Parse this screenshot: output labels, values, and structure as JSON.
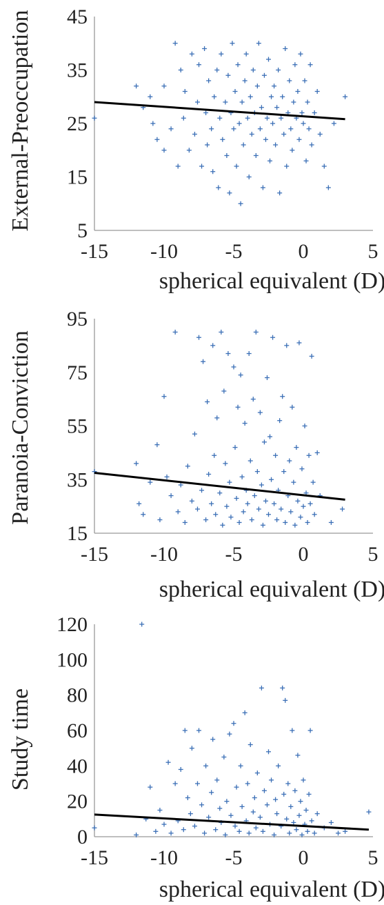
{
  "chart_data": [
    {
      "type": "scatter",
      "xlabel": "spherical equivalent (D)",
      "ylabel": "External-Preoccupation",
      "xlim": [
        -15,
        5
      ],
      "ylim": [
        5,
        45
      ],
      "xticks": [
        -15,
        -10,
        -5,
        0,
        5
      ],
      "yticks": [
        5,
        15,
        25,
        35,
        45
      ],
      "trendline": {
        "x": [
          -15,
          3
        ],
        "y": [
          29.0,
          25.8
        ]
      },
      "points": [
        [
          -15,
          26
        ],
        [
          -12,
          32
        ],
        [
          -11.5,
          28
        ],
        [
          -11,
          30
        ],
        [
          -10.8,
          25
        ],
        [
          -10.5,
          22
        ],
        [
          -10,
          32
        ],
        [
          -10,
          20
        ],
        [
          -9.5,
          24
        ],
        [
          -9.2,
          40
        ],
        [
          -9,
          17
        ],
        [
          -8.8,
          35
        ],
        [
          -8.6,
          26
        ],
        [
          -8.5,
          31
        ],
        [
          -8.2,
          20
        ],
        [
          -8,
          38
        ],
        [
          -7.8,
          23
        ],
        [
          -7.6,
          29
        ],
        [
          -7.5,
          36
        ],
        [
          -7.3,
          17
        ],
        [
          -7.1,
          39
        ],
        [
          -7,
          27
        ],
        [
          -6.9,
          21
        ],
        [
          -6.8,
          33
        ],
        [
          -6.6,
          24
        ],
        [
          -6.5,
          16
        ],
        [
          -6.4,
          30
        ],
        [
          -6.2,
          35
        ],
        [
          -6.1,
          13
        ],
        [
          -6,
          26
        ],
        [
          -5.9,
          38
        ],
        [
          -5.8,
          22
        ],
        [
          -5.6,
          29
        ],
        [
          -5.5,
          19
        ],
        [
          -5.4,
          34
        ],
        [
          -5.3,
          12
        ],
        [
          -5.2,
          27
        ],
        [
          -5.1,
          40
        ],
        [
          -5,
          24
        ],
        [
          -4.9,
          31
        ],
        [
          -4.8,
          17
        ],
        [
          -4.7,
          36
        ],
        [
          -4.6,
          25
        ],
        [
          -4.5,
          10
        ],
        [
          -4.4,
          29
        ],
        [
          -4.3,
          21
        ],
        [
          -4.2,
          33
        ],
        [
          -4.1,
          38
        ],
        [
          -4,
          26
        ],
        [
          -3.9,
          15
        ],
        [
          -3.8,
          30
        ],
        [
          -3.7,
          23
        ],
        [
          -3.6,
          35
        ],
        [
          -3.5,
          27
        ],
        [
          -3.4,
          19
        ],
        [
          -3.3,
          32
        ],
        [
          -3.2,
          40
        ],
        [
          -3.1,
          24
        ],
        [
          -3,
          28
        ],
        [
          -2.9,
          13
        ],
        [
          -2.8,
          34
        ],
        [
          -2.7,
          22
        ],
        [
          -2.6,
          26
        ],
        [
          -2.5,
          37
        ],
        [
          -2.4,
          18
        ],
        [
          -2.3,
          30
        ],
        [
          -2.2,
          25
        ],
        [
          -2.1,
          32
        ],
        [
          -2,
          21
        ],
        [
          -1.9,
          28
        ],
        [
          -1.8,
          35
        ],
        [
          -1.7,
          12
        ],
        [
          -1.6,
          26
        ],
        [
          -1.5,
          30
        ],
        [
          -1.4,
          23
        ],
        [
          -1.3,
          39
        ],
        [
          -1.2,
          17
        ],
        [
          -1.1,
          27
        ],
        [
          -1,
          33
        ],
        [
          -0.9,
          24
        ],
        [
          -0.8,
          20
        ],
        [
          -0.7,
          29
        ],
        [
          -0.6,
          36
        ],
        [
          -0.5,
          26
        ],
        [
          -0.4,
          31
        ],
        [
          -0.3,
          22
        ],
        [
          -0.2,
          38
        ],
        [
          -0.1,
          27
        ],
        [
          0,
          25
        ],
        [
          0.1,
          33
        ],
        [
          0.2,
          18
        ],
        [
          0.3,
          29
        ],
        [
          0.4,
          24
        ],
        [
          0.5,
          36
        ],
        [
          0.6,
          21
        ],
        [
          0.8,
          27
        ],
        [
          1,
          31
        ],
        [
          1.2,
          23
        ],
        [
          1.5,
          17
        ],
        [
          1.8,
          13
        ],
        [
          2.2,
          25
        ],
        [
          3,
          30
        ]
      ]
    },
    {
      "type": "scatter",
      "xlabel": "spherical equivalent (D)",
      "ylabel": "Paranoia-Conviction",
      "xlim": [
        -15,
        5
      ],
      "ylim": [
        15,
        95
      ],
      "xticks": [
        -15,
        -10,
        -5,
        0,
        5
      ],
      "yticks": [
        15,
        35,
        55,
        75,
        95
      ],
      "trendline": {
        "x": [
          -15,
          3
        ],
        "y": [
          37.5,
          27.5
        ]
      },
      "points": [
        [
          -15,
          38
        ],
        [
          -12,
          41
        ],
        [
          -11.8,
          26
        ],
        [
          -11.5,
          22
        ],
        [
          -11,
          34
        ],
        [
          -10.5,
          48
        ],
        [
          -10.3,
          20
        ],
        [
          -10,
          66
        ],
        [
          -9.8,
          36
        ],
        [
          -9.5,
          29
        ],
        [
          -9.2,
          90
        ],
        [
          -9,
          23
        ],
        [
          -8.8,
          33
        ],
        [
          -8.5,
          19
        ],
        [
          -8.3,
          40
        ],
        [
          -8,
          27
        ],
        [
          -7.8,
          52
        ],
        [
          -7.6,
          24
        ],
        [
          -7.5,
          88
        ],
        [
          -7.3,
          31
        ],
        [
          -7.2,
          79
        ],
        [
          -7,
          20
        ],
        [
          -6.9,
          64
        ],
        [
          -6.8,
          37
        ],
        [
          -6.6,
          26
        ],
        [
          -6.5,
          85
        ],
        [
          -6.4,
          44
        ],
        [
          -6.3,
          22
        ],
        [
          -6.2,
          58
        ],
        [
          -6,
          30
        ],
        [
          -5.9,
          90
        ],
        [
          -5.8,
          18
        ],
        [
          -5.7,
          68
        ],
        [
          -5.6,
          41
        ],
        [
          -5.5,
          25
        ],
        [
          -5.4,
          82
        ],
        [
          -5.3,
          34
        ],
        [
          -5.2,
          21
        ],
        [
          -5,
          77
        ],
        [
          -4.9,
          47
        ],
        [
          -4.8,
          28
        ],
        [
          -4.7,
          62
        ],
        [
          -4.6,
          19
        ],
        [
          -4.5,
          74
        ],
        [
          -4.4,
          36
        ],
        [
          -4.3,
          23
        ],
        [
          -4.2,
          56
        ],
        [
          -4.1,
          31
        ],
        [
          -4,
          26
        ],
        [
          -3.9,
          82
        ],
        [
          -3.8,
          42
        ],
        [
          -3.7,
          20
        ],
        [
          -3.6,
          65
        ],
        [
          -3.5,
          29
        ],
        [
          -3.4,
          90
        ],
        [
          -3.3,
          38
        ],
        [
          -3.2,
          24
        ],
        [
          -3.1,
          60
        ],
        [
          -3,
          33
        ],
        [
          -2.9,
          18
        ],
        [
          -2.8,
          49
        ],
        [
          -2.7,
          27
        ],
        [
          -2.6,
          73
        ],
        [
          -2.5,
          22
        ],
        [
          -2.4,
          51
        ],
        [
          -2.3,
          35
        ],
        [
          -2.2,
          88
        ],
        [
          -2.1,
          26
        ],
        [
          -2,
          44
        ],
        [
          -1.9,
          20
        ],
        [
          -1.8,
          31
        ],
        [
          -1.7,
          57
        ],
        [
          -1.6,
          24
        ],
        [
          -1.5,
          66
        ],
        [
          -1.4,
          38
        ],
        [
          -1.3,
          19
        ],
        [
          -1.2,
          85
        ],
        [
          -1.1,
          29
        ],
        [
          -1,
          42
        ],
        [
          -0.9,
          23
        ],
        [
          -0.8,
          62
        ],
        [
          -0.7,
          34
        ],
        [
          -0.6,
          18
        ],
        [
          -0.5,
          47
        ],
        [
          -0.4,
          27
        ],
        [
          -0.3,
          86
        ],
        [
          -0.2,
          21
        ],
        [
          -0.1,
          39
        ],
        [
          0,
          25
        ],
        [
          0.1,
          55
        ],
        [
          0.2,
          30
        ],
        [
          0.3,
          19
        ],
        [
          0.4,
          44
        ],
        [
          0.5,
          26
        ],
        [
          0.6,
          81
        ],
        [
          0.7,
          34
        ],
        [
          0.8,
          22
        ],
        [
          1,
          45
        ],
        [
          1.2,
          29
        ],
        [
          2,
          19
        ],
        [
          2.8,
          24
        ]
      ]
    },
    {
      "type": "scatter",
      "xlabel": "spherical equivalent (D)",
      "ylabel": "Study time",
      "xlim": [
        -15,
        5
      ],
      "ylim": [
        0,
        120
      ],
      "xticks": [
        -15,
        -10,
        -5,
        0,
        5
      ],
      "yticks": [
        0,
        20,
        40,
        60,
        80,
        100,
        120
      ],
      "trendline": {
        "x": [
          -15,
          4.7
        ],
        "y": [
          12.5,
          4.0
        ]
      },
      "points": [
        [
          -15,
          5
        ],
        [
          -12,
          1
        ],
        [
          -11.6,
          120
        ],
        [
          -11.3,
          10
        ],
        [
          -11,
          28
        ],
        [
          -10.6,
          3
        ],
        [
          -10.3,
          15
        ],
        [
          -10,
          7
        ],
        [
          -9.7,
          42
        ],
        [
          -9.5,
          2
        ],
        [
          -9.2,
          30
        ],
        [
          -9,
          9
        ],
        [
          -8.8,
          38
        ],
        [
          -8.6,
          4
        ],
        [
          -8.5,
          60
        ],
        [
          -8.3,
          22
        ],
        [
          -8.1,
          13
        ],
        [
          -8,
          50
        ],
        [
          -7.8,
          6
        ],
        [
          -7.6,
          30
        ],
        [
          -7.5,
          60
        ],
        [
          -7.3,
          18
        ],
        [
          -7.1,
          2
        ],
        [
          -7,
          40
        ],
        [
          -6.8,
          11
        ],
        [
          -6.6,
          25
        ],
        [
          -6.5,
          55
        ],
        [
          -6.3,
          4
        ],
        [
          -6.2,
          32
        ],
        [
          -6,
          16
        ],
        [
          -5.9,
          8
        ],
        [
          -5.7,
          45
        ],
        [
          -5.6,
          1
        ],
        [
          -5.5,
          20
        ],
        [
          -5.3,
          58
        ],
        [
          -5.2,
          12
        ],
        [
          -5,
          64
        ],
        [
          -4.9,
          6
        ],
        [
          -4.8,
          28
        ],
        [
          -4.6,
          3
        ],
        [
          -4.5,
          40
        ],
        [
          -4.4,
          17
        ],
        [
          -4.2,
          70
        ],
        [
          -4.1,
          9
        ],
        [
          -4,
          30
        ],
        [
          -3.9,
          2
        ],
        [
          -3.8,
          52
        ],
        [
          -3.6,
          14
        ],
        [
          -3.5,
          22
        ],
        [
          -3.4,
          5
        ],
        [
          -3.3,
          36
        ],
        [
          -3.1,
          11
        ],
        [
          -3,
          84
        ],
        [
          -2.9,
          3
        ],
        [
          -2.8,
          26
        ],
        [
          -2.6,
          18
        ],
        [
          -2.5,
          48
        ],
        [
          -2.4,
          7
        ],
        [
          -2.3,
          32
        ],
        [
          -2.1,
          1
        ],
        [
          -2,
          21
        ],
        [
          -1.9,
          13
        ],
        [
          -1.8,
          40
        ],
        [
          -1.6,
          6
        ],
        [
          -1.5,
          84
        ],
        [
          -1.4,
          24
        ],
        [
          -1.3,
          77
        ],
        [
          -1.2,
          10
        ],
        [
          -1.1,
          30
        ],
        [
          -1,
          2
        ],
        [
          -0.9,
          17
        ],
        [
          -0.8,
          60
        ],
        [
          -0.7,
          8
        ],
        [
          -0.6,
          26
        ],
        [
          -0.5,
          4
        ],
        [
          -0.4,
          46
        ],
        [
          -0.3,
          12
        ],
        [
          -0.2,
          20
        ],
        [
          -0.1,
          1
        ],
        [
          0,
          32
        ],
        [
          0.1,
          7
        ],
        [
          0.2,
          15
        ],
        [
          0.3,
          3
        ],
        [
          0.4,
          24
        ],
        [
          0.5,
          60
        ],
        [
          0.6,
          9
        ],
        [
          0.8,
          2
        ],
        [
          1,
          13
        ],
        [
          1.5,
          5
        ],
        [
          2,
          8
        ],
        [
          2.5,
          2
        ],
        [
          3,
          3
        ],
        [
          4.7,
          14
        ]
      ]
    }
  ]
}
